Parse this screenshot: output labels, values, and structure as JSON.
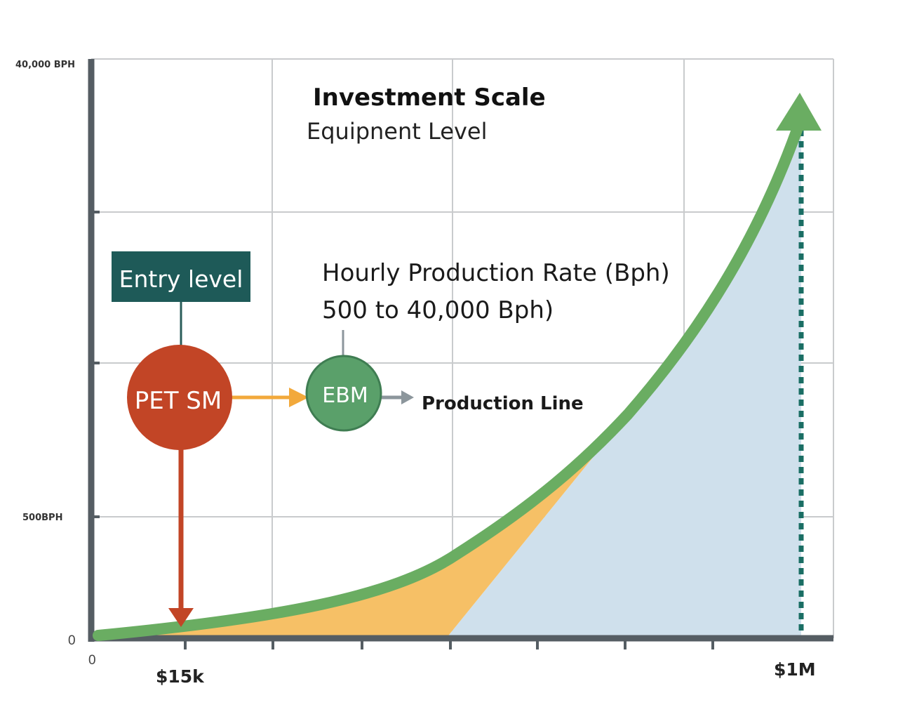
{
  "chart_data": {
    "type": "area",
    "title": "Investment Scale",
    "subtitle": "Equipnent Level",
    "x_axis": {
      "origin_label": "0",
      "tick_labels": [
        "$15k",
        "$1M"
      ],
      "range": [
        "0",
        "$1M"
      ]
    },
    "y_axis": {
      "origin_label": "0",
      "tick_labels": [
        "500BPH",
        "40,000 BPH"
      ],
      "range": [
        0,
        40000
      ]
    },
    "grid": true,
    "series": [
      {
        "type": "curve",
        "color": "#6aad62",
        "shape": "exponential growth with arrowhead at top-right"
      }
    ],
    "fill_regions": [
      {
        "color": "#f6c066"
      },
      {
        "color": "#cfe0ec"
      }
    ],
    "annotations": {
      "rate_line1": "Hourly Production Rate (Bph)",
      "rate_line2": "500 to 40,000 Bph)",
      "entry_label": "Entry level",
      "node1": "PET SM",
      "node2": "EBM",
      "production_line": "Production Line"
    },
    "colors": {
      "entry_box": "#1e5a58",
      "node1": "#c24526",
      "node2": "#5aa06a",
      "orange_arrow": "#f2a93b",
      "gray_arrow": "#8c969c",
      "dotted_line": "#1a6e64"
    }
  }
}
